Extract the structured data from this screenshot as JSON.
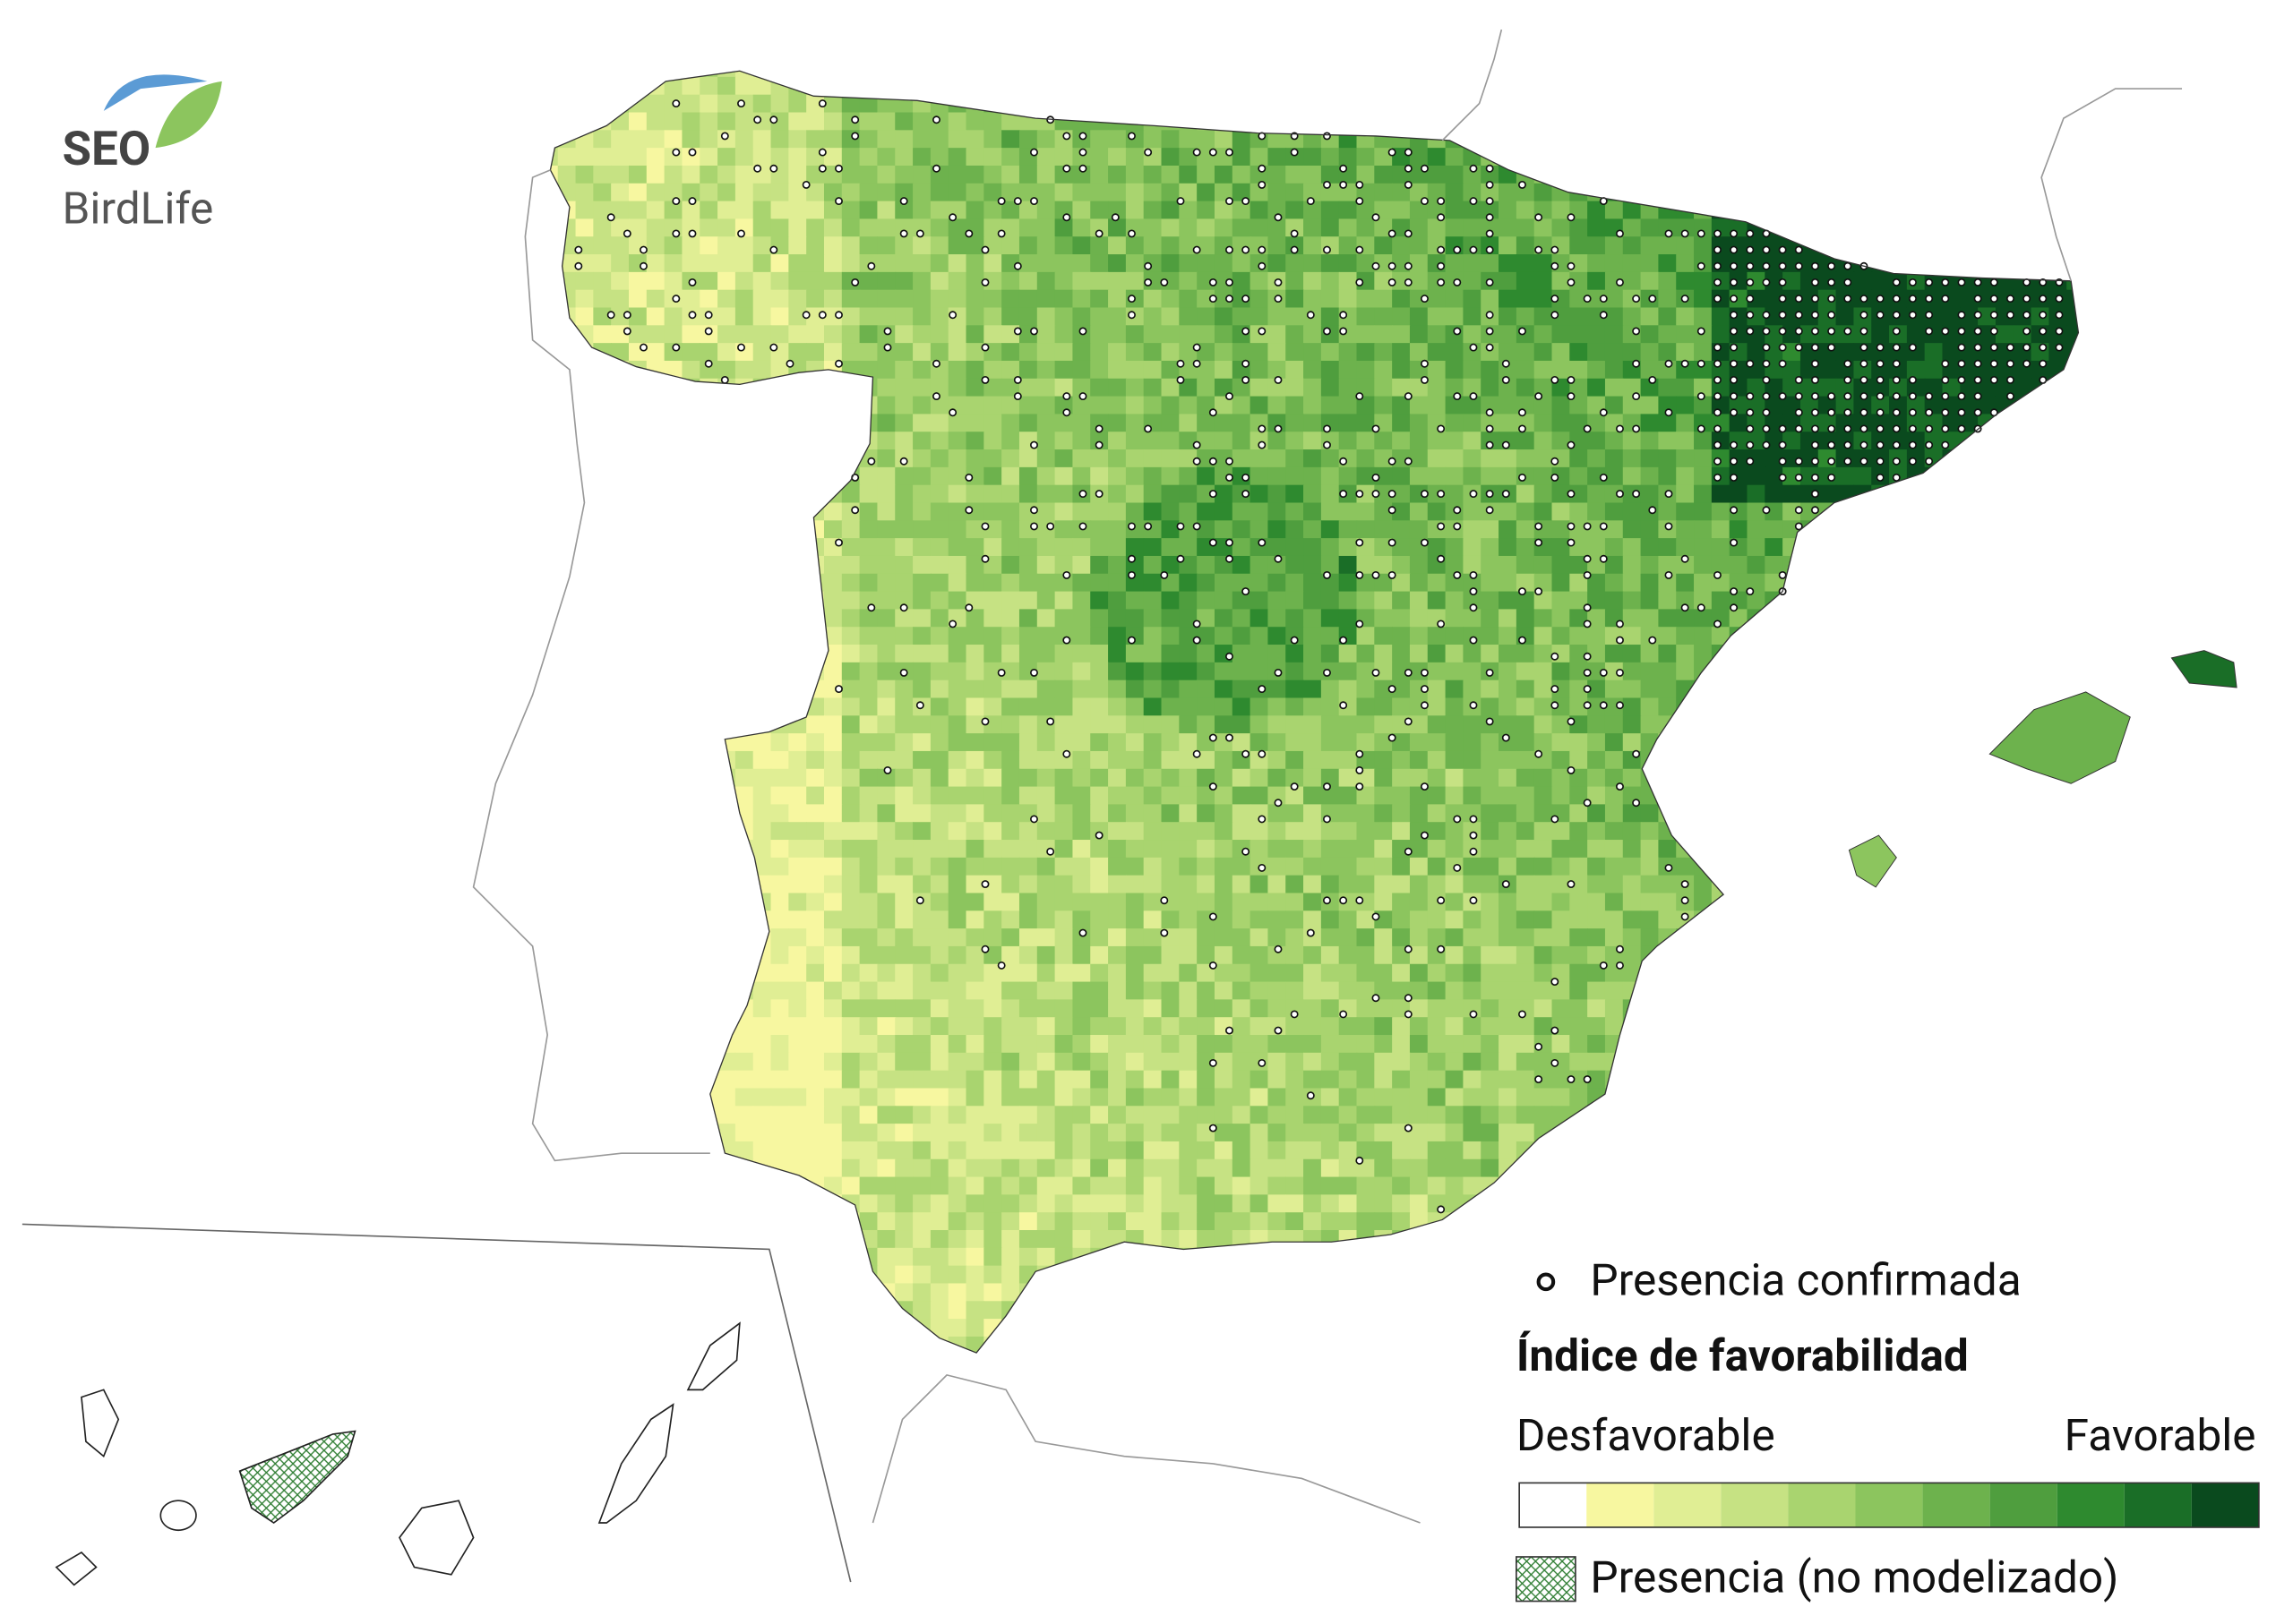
{
  "logo": {
    "name": "SEO",
    "subname": "BirdLife"
  },
  "legend": {
    "presence": "Presencia confirmada",
    "title": "Índice de favorabilidad",
    "low": "Desfavorable",
    "high": "Favorable",
    "scale_colors": [
      "#ffffff",
      "#f7f7a0",
      "#e0ee94",
      "#c6e283",
      "#a9d46f",
      "#8cc55e",
      "#6db24d",
      "#4f9e3e",
      "#2e8a2f",
      "#1a6e27",
      "#0a4a1e"
    ],
    "hatch": "Presencia (no modelizado)"
  }
}
